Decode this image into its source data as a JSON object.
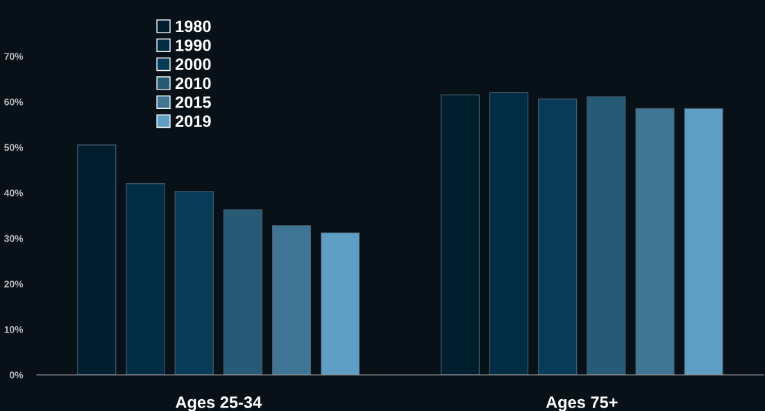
{
  "chart_data": {
    "type": "bar",
    "categories": [
      "Ages 25-34",
      "Ages 75+"
    ],
    "series": [
      {
        "name": "1980",
        "color": "#001f2e",
        "values": [
          50.5,
          61.5
        ]
      },
      {
        "name": "1990",
        "color": "#012d45",
        "values": [
          42.0,
          62.0
        ]
      },
      {
        "name": "2000",
        "color": "#073b57",
        "values": [
          40.3,
          60.6
        ]
      },
      {
        "name": "2010",
        "color": "#265a75",
        "values": [
          36.3,
          61.1
        ]
      },
      {
        "name": "2015",
        "color": "#3f7595",
        "values": [
          32.8,
          58.5
        ]
      },
      {
        "name": "2019",
        "color": "#5e9ec4",
        "values": [
          31.2,
          58.5
        ]
      }
    ],
    "ylim": [
      0,
      70
    ],
    "yticks": [
      {
        "value": 0,
        "label": "0%"
      },
      {
        "value": 10,
        "label": "10%"
      },
      {
        "value": 20,
        "label": "20%"
      },
      {
        "value": 30,
        "label": "30%"
      },
      {
        "value": 40,
        "label": "40%"
      },
      {
        "value": 50,
        "label": "50%"
      },
      {
        "value": 60,
        "label": "60%"
      },
      {
        "value": 70,
        "label": "70%"
      }
    ],
    "grid": false,
    "legend": "top left"
  }
}
